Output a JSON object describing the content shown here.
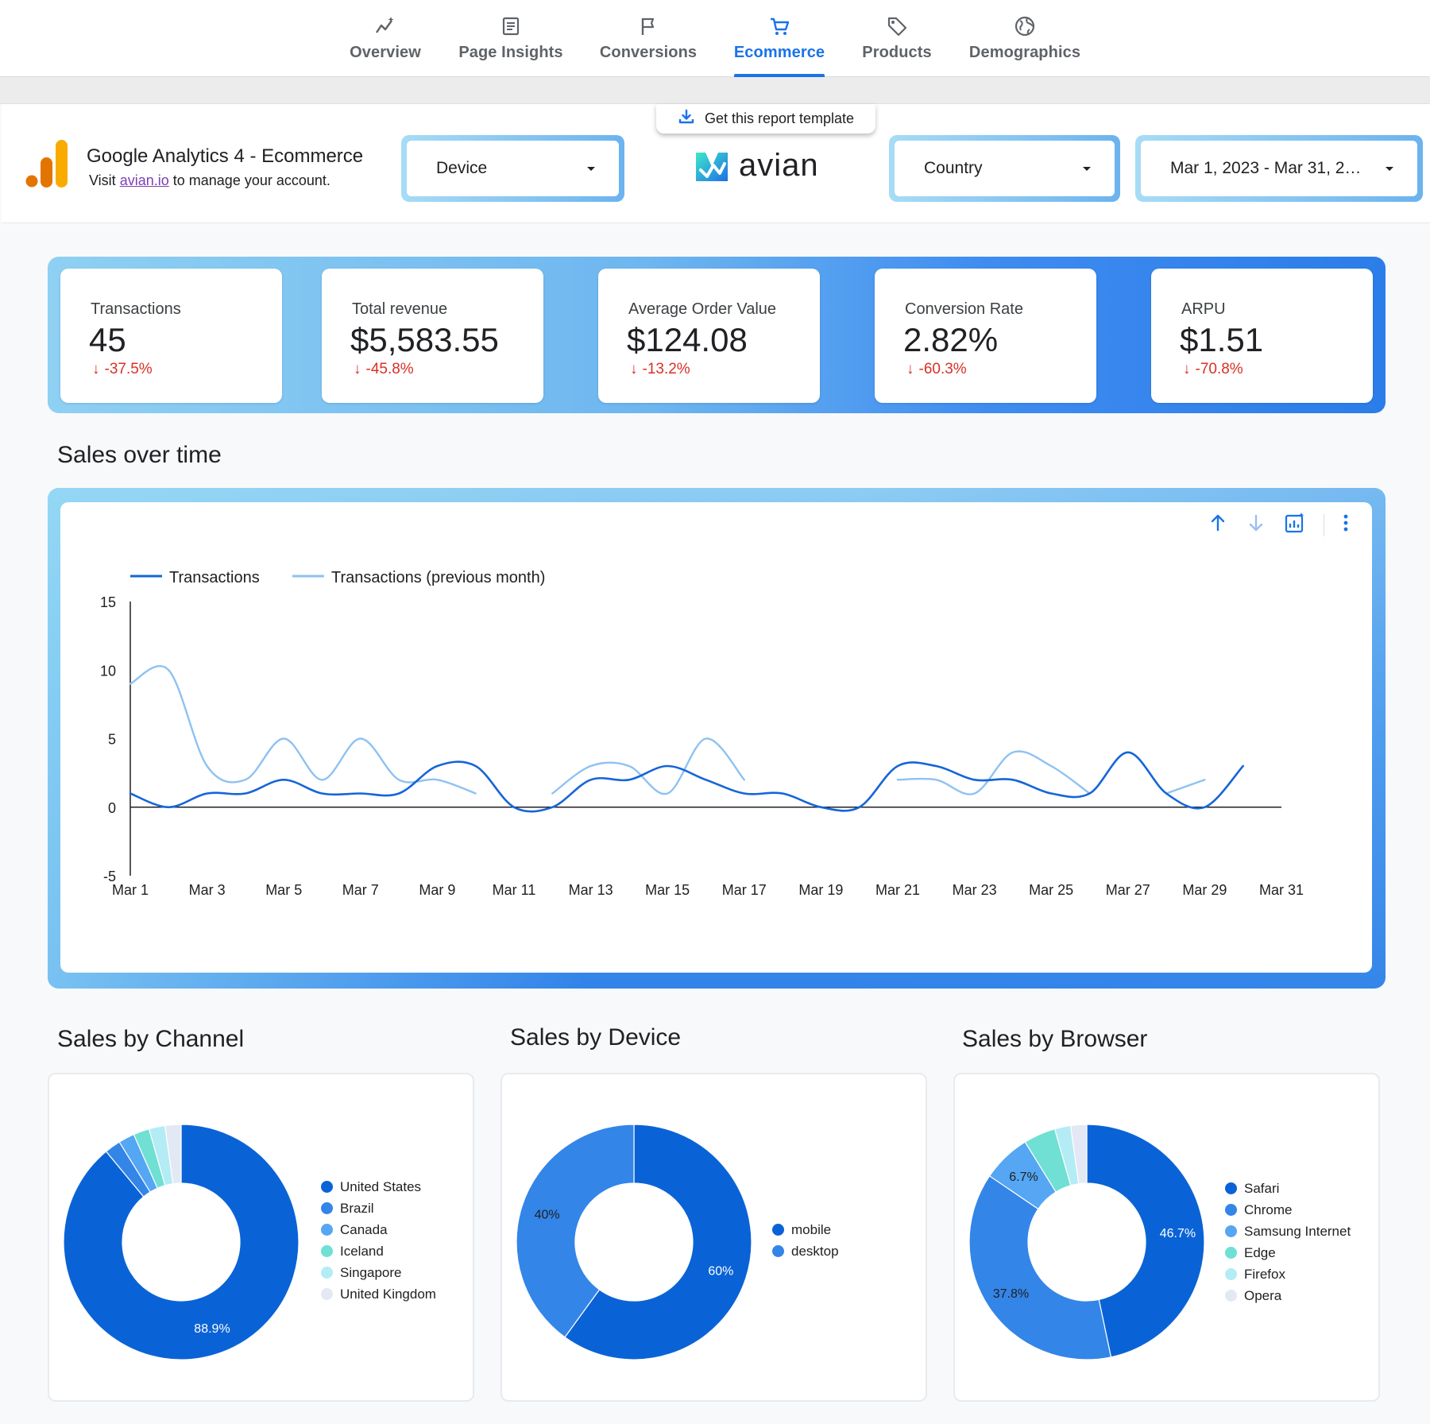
{
  "nav": {
    "tabs": [
      {
        "label": "Overview",
        "icon": "sparkline-icon"
      },
      {
        "label": "Page Insights",
        "icon": "document-icon"
      },
      {
        "label": "Conversions",
        "icon": "flag-icon"
      },
      {
        "label": "Ecommerce",
        "icon": "cart-icon",
        "active": true
      },
      {
        "label": "Products",
        "icon": "tag-icon"
      },
      {
        "label": "Demographics",
        "icon": "globe-icon"
      }
    ]
  },
  "header": {
    "template_button": "Get this report template",
    "title": "Google Analytics 4 - Ecommerce",
    "subtitle_pre": "Visit",
    "subtitle_link": "avian.io",
    "subtitle_post": "to manage your account.",
    "device_filter": "Device",
    "brand": "avian",
    "country_filter": "Country",
    "date_range": "Mar 1, 2023 - Mar 31, 2…"
  },
  "kpis": [
    {
      "label": "Transactions",
      "value": "45",
      "delta": "-37.5%"
    },
    {
      "label": "Total revenue",
      "value": "$5,583.55",
      "delta": "-45.8%"
    },
    {
      "label": "Average Order Value",
      "value": "$124.08",
      "delta": "-13.2%"
    },
    {
      "label": "Conversion Rate",
      "value": "2.82%",
      "delta": "-60.3%"
    },
    {
      "label": "ARPU",
      "value": "$1.51",
      "delta": "-70.8%"
    }
  ],
  "colors": {
    "accent": "#1a73e8",
    "negative": "#d93025",
    "series_current": "#1565d8",
    "series_previous": "#8ec2f2"
  },
  "sections": {
    "sales_over_time": "Sales over time",
    "by_channel": "Sales by Channel",
    "by_device": "Sales by Device",
    "by_browser": "Sales by Browser"
  },
  "chart_data": [
    {
      "type": "line",
      "title": "Sales over time",
      "x": [
        "Mar 1",
        "Mar 2",
        "Mar 3",
        "Mar 4",
        "Mar 5",
        "Mar 6",
        "Mar 7",
        "Mar 8",
        "Mar 9",
        "Mar 10",
        "Mar 11",
        "Mar 12",
        "Mar 13",
        "Mar 14",
        "Mar 15",
        "Mar 16",
        "Mar 17",
        "Mar 18",
        "Mar 19",
        "Mar 20",
        "Mar 21",
        "Mar 22",
        "Mar 23",
        "Mar 24",
        "Mar 25",
        "Mar 26",
        "Mar 27",
        "Mar 28",
        "Mar 29",
        "Mar 30",
        "Mar 31"
      ],
      "x_ticks": [
        "Mar 1",
        "Mar 3",
        "Mar 5",
        "Mar 7",
        "Mar 9",
        "Mar 11",
        "Mar 13",
        "Mar 15",
        "Mar 17",
        "Mar 19",
        "Mar 21",
        "Mar 23",
        "Mar 25",
        "Mar 27",
        "Mar 29",
        "Mar 31"
      ],
      "ylim": [
        -5,
        15
      ],
      "y_ticks": [
        15,
        10,
        5,
        0,
        -5
      ],
      "legend_position": "top-left",
      "series": [
        {
          "name": "Transactions",
          "color": "#1565d8",
          "values": [
            1,
            0,
            1,
            1,
            2,
            1,
            1,
            1,
            3,
            3,
            0,
            0,
            2,
            2,
            3,
            2,
            1,
            1,
            0,
            0,
            3,
            3,
            2,
            2,
            1,
            1,
            4,
            1,
            0,
            3,
            null
          ]
        },
        {
          "name": "Transactions (previous month)",
          "color": "#8ec2f2",
          "values": [
            9,
            10,
            3,
            2,
            5,
            2,
            5,
            2,
            2,
            1,
            null,
            1,
            3,
            3,
            1,
            5,
            2,
            null,
            null,
            null,
            2,
            2,
            1,
            4,
            3,
            1,
            null,
            1,
            2,
            null,
            null
          ]
        }
      ]
    },
    {
      "type": "pie",
      "title": "Sales by Channel",
      "donut": true,
      "labels": [
        "United States",
        "Brazil",
        "Canada",
        "Iceland",
        "Singapore",
        "United Kingdom"
      ],
      "values": [
        88.9,
        2.2,
        2.2,
        2.2,
        2.2,
        2.2
      ],
      "data_labels": [
        "88.9%",
        "",
        "",
        "",
        "",
        ""
      ],
      "colors": [
        "#0a63d6",
        "#3385e8",
        "#55a6f3",
        "#6fe0d3",
        "#b3ecf5",
        "#e3e8f5"
      ]
    },
    {
      "type": "pie",
      "title": "Sales by Device",
      "donut": true,
      "labels": [
        "mobile",
        "desktop"
      ],
      "values": [
        60,
        40
      ],
      "data_labels": [
        "60%",
        "40%"
      ],
      "colors": [
        "#0a63d6",
        "#3385e8"
      ]
    },
    {
      "type": "pie",
      "title": "Sales by Browser",
      "donut": true,
      "labels": [
        "Safari",
        "Chrome",
        "Samsung Internet",
        "Edge",
        "Firefox",
        "Opera"
      ],
      "values": [
        46.7,
        37.8,
        6.7,
        4.4,
        2.2,
        2.2
      ],
      "data_labels": [
        "46.7%",
        "37.8%",
        "6.7%",
        "",
        "",
        ""
      ],
      "colors": [
        "#0a63d6",
        "#3385e8",
        "#55a6f3",
        "#6fe0d3",
        "#b3ecf5",
        "#e3e8f5"
      ]
    }
  ]
}
